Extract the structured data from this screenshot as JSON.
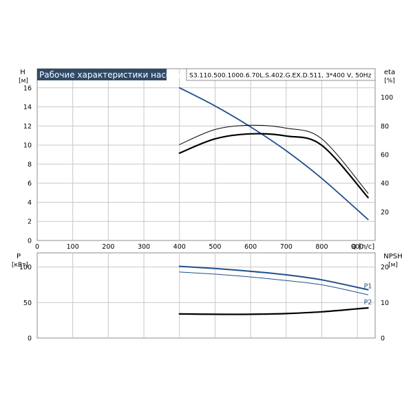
{
  "chart_data": [
    {
      "type": "line",
      "title": "Рабочие характеристики насоса",
      "subtitle": "S3.110.500.1000.6.70L.S.402.G.EX.D.511, 3*400 V, 50Hz",
      "xlabel": "Q [л/с]",
      "ylabel": "H",
      "ylabel_unit": "[м]",
      "y2label": "eta",
      "y2label_unit": "[%]",
      "xlim": [
        0,
        950
      ],
      "ylim": [
        0,
        18
      ],
      "y2lim": [
        0,
        120
      ],
      "xticks": [
        "0",
        "100",
        "200",
        "300",
        "400",
        "500",
        "600",
        "700",
        "800",
        "900"
      ],
      "yticks": [
        "0",
        "2",
        "4",
        "6",
        "8",
        "10",
        "12",
        "14",
        "16"
      ],
      "y2ticks": [
        "20",
        "40",
        "60",
        "80",
        "100"
      ],
      "grid": true,
      "colors": {
        "head": "#1f4e8c",
        "eta": "#000000",
        "title_bg": "#2f4a66"
      },
      "series": [
        {
          "axis": "left",
          "style": "head",
          "x": [
            400,
            500,
            600,
            700,
            800,
            930
          ],
          "y": [
            16.0,
            14.1,
            11.9,
            9.4,
            6.5,
            2.2
          ]
        },
        {
          "axis": "right",
          "style": "eta-thin",
          "x": [
            400,
            500,
            600,
            700,
            800,
            930
          ],
          "y": [
            67,
            77.5,
            80.5,
            78.5,
            71,
            33
          ]
        },
        {
          "axis": "right",
          "style": "eta-thick",
          "x": [
            400,
            500,
            600,
            700,
            800,
            930
          ],
          "y": [
            61,
            71,
            74.5,
            73,
            66.5,
            30
          ]
        }
      ]
    },
    {
      "type": "line",
      "ylabel": "P",
      "ylabel_unit": "[кВт]",
      "y2label": "NPSH",
      "y2label_unit": "[м]",
      "xlim": [
        0,
        950
      ],
      "ylim": [
        0,
        120
      ],
      "y2lim": [
        0,
        24
      ],
      "yticks": [
        "0",
        "50",
        "100"
      ],
      "y2ticks": [
        "0",
        "10",
        "20"
      ],
      "grid": true,
      "colors": {
        "power": "#1f4e8c",
        "npsh": "#000000"
      },
      "series": [
        {
          "name": "P1",
          "axis": "left",
          "style": "power-thick",
          "x": [
            400,
            500,
            600,
            700,
            800,
            930
          ],
          "y": [
            101,
            98,
            94,
            89,
            82,
            68
          ]
        },
        {
          "name": "P2",
          "axis": "left",
          "style": "power-thin",
          "x": [
            400,
            500,
            600,
            700,
            800,
            930
          ],
          "y": [
            93,
            90,
            86,
            81,
            75,
            61
          ]
        },
        {
          "axis": "right",
          "style": "npsh",
          "x": [
            400,
            500,
            600,
            700,
            800,
            930
          ],
          "y": [
            6.8,
            6.7,
            6.7,
            6.9,
            7.4,
            8.5
          ]
        }
      ]
    }
  ]
}
